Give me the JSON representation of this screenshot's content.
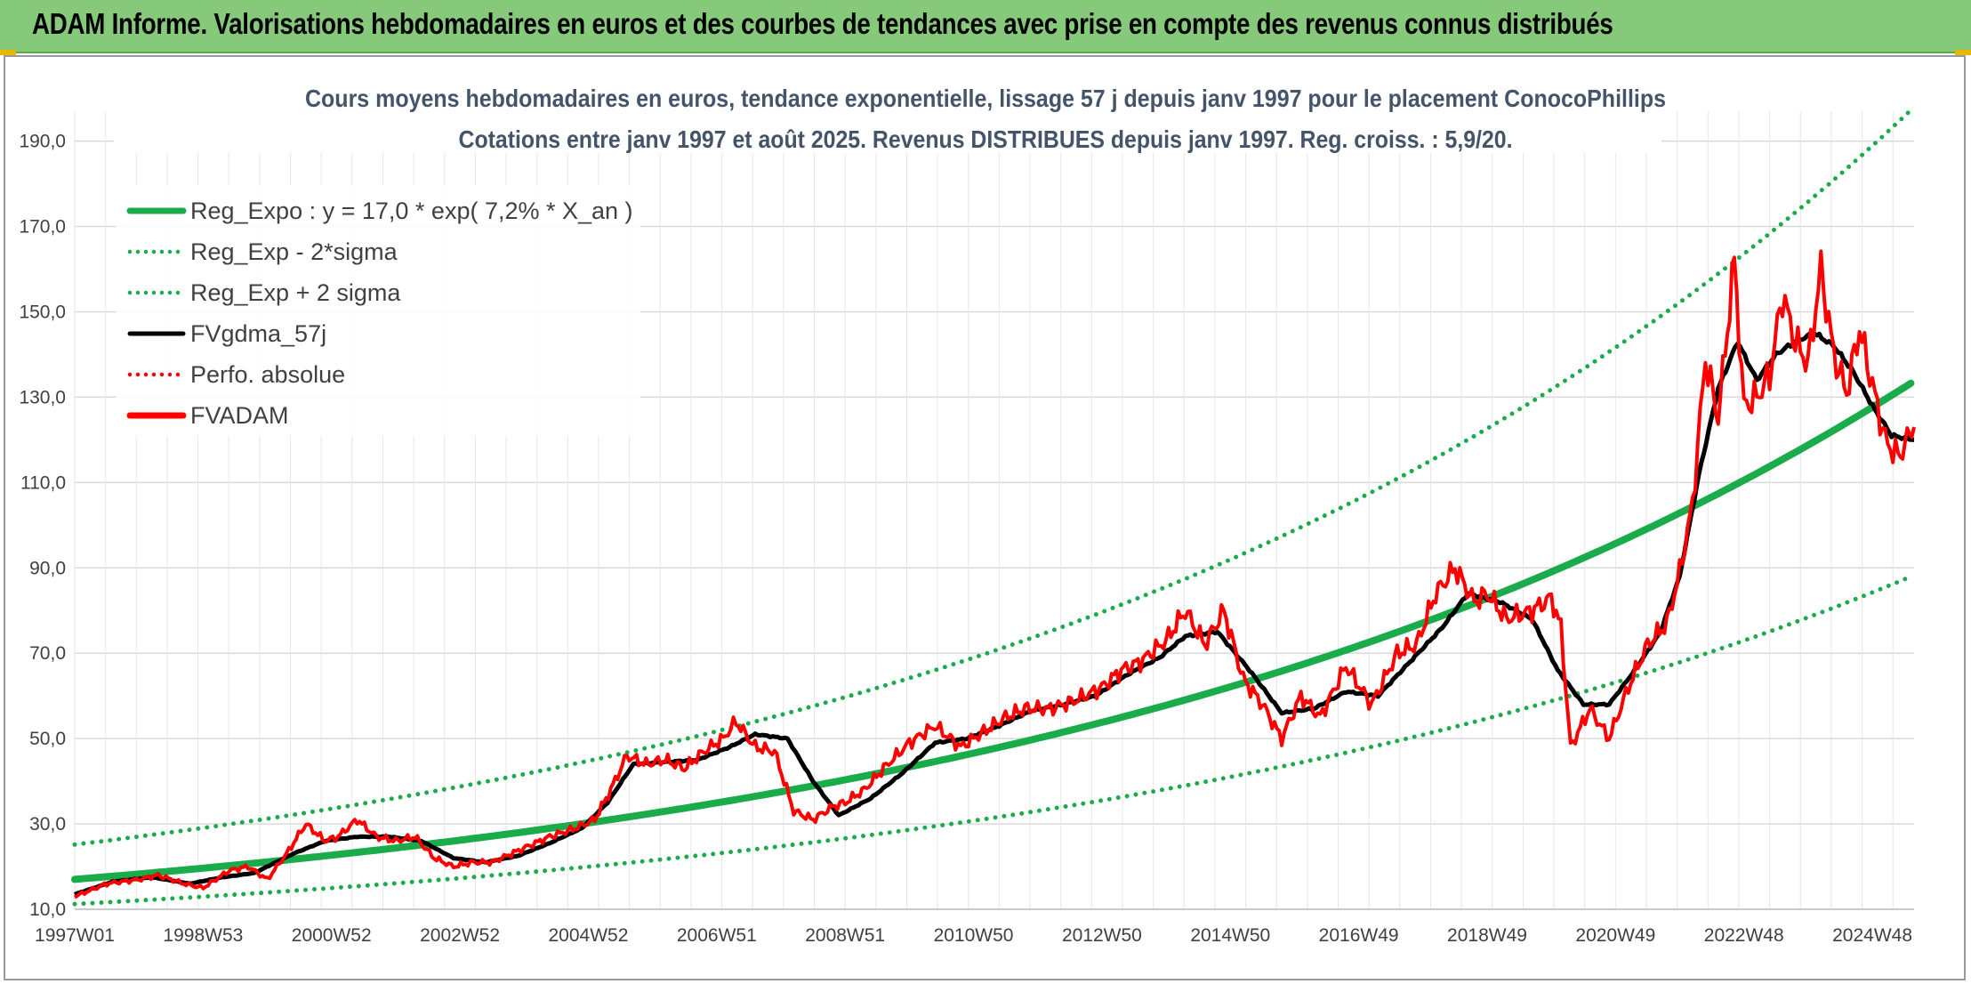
{
  "header": {
    "title": "ADAM Informe. Valorisations hebdomadaires en euros et des courbes de tendances avec prise en compte des revenus connus distribués"
  },
  "colors": {
    "banner": "#86c97a",
    "trend": "#1aab4a",
    "black": "#000000",
    "red": "#ff0000",
    "title": "#44546a"
  },
  "chart_data": {
    "type": "line",
    "title": "Cours moyens hebdomadaires en euros, tendance exponentielle, lissage 57 j depuis janv 1997 pour le placement ConocoPhillips",
    "subtitle": "Cotations entre janv 1997 et août 2025. Revenus DISTRIBUES depuis janv 1997. Reg. croiss. : 5,9/20.",
    "xlabel": "",
    "ylabel": "",
    "x_range": [
      1997.0,
      2025.65
    ],
    "ylim": [
      10,
      197
    ],
    "y_ticks": [
      "10,0",
      "30,0",
      "50,0",
      "70,0",
      "90,0",
      "110,0",
      "130,0",
      "150,0",
      "170,0",
      "190,0"
    ],
    "x_ticks": [
      {
        "label": "1997W01",
        "year": 1997.0
      },
      {
        "label": "1998W53",
        "year": 1999.0
      },
      {
        "label": "2000W52",
        "year": 2001.0
      },
      {
        "label": "2002W52",
        "year": 2003.0
      },
      {
        "label": "2004W52",
        "year": 2005.0
      },
      {
        "label": "2006W51",
        "year": 2007.0
      },
      {
        "label": "2008W51",
        "year": 2009.0
      },
      {
        "label": "2010W50",
        "year": 2011.0
      },
      {
        "label": "2012W50",
        "year": 2013.0
      },
      {
        "label": "2014W50",
        "year": 2015.0
      },
      {
        "label": "2016W49",
        "year": 2017.0
      },
      {
        "label": "2018W49",
        "year": 2019.0
      },
      {
        "label": "2020W49",
        "year": 2021.0
      },
      {
        "label": "2022W48",
        "year": 2023.0
      },
      {
        "label": "2024W48",
        "year": 2025.0
      }
    ],
    "grid": true,
    "legend_position": "top-left",
    "legend": [
      {
        "label": "Reg_Expo : y = 17,0 * exp( 7,2% *  X_an )",
        "color": "#1aab4a",
        "style": "solid-thick"
      },
      {
        "label": "Reg_Exp - 2*sigma",
        "color": "#1aab4a",
        "style": "dotted"
      },
      {
        "label": "Reg_Exp + 2 sigma",
        "color": "#1aab4a",
        "style": "dotted"
      },
      {
        "label": "FVgdma_57j",
        "color": "#000000",
        "style": "solid"
      },
      {
        "label": "Perfo. absolue",
        "color": "#ff0000",
        "style": "dotted"
      },
      {
        "label": "FVADAM",
        "color": "#ff0000",
        "style": "solid-thick"
      }
    ],
    "regression": {
      "a": 17.0,
      "rate": 0.072,
      "lower_factor": 0.66,
      "upper_factor": 1.48
    },
    "series": [
      {
        "name": "FVADAM",
        "x": [
          1997.0,
          1997.5,
          1998.0,
          1998.3,
          1998.7,
          1999.0,
          1999.4,
          1999.7,
          2000.0,
          2000.3,
          2000.6,
          2000.9,
          2001.1,
          2001.4,
          2001.7,
          2002.0,
          2002.3,
          2002.6,
          2002.9,
          2003.2,
          2003.5,
          2003.8,
          2004.1,
          2004.4,
          2004.8,
          2005.1,
          2005.35,
          2005.6,
          2005.9,
          2006.2,
          2006.5,
          2006.8,
          2007.1,
          2007.3,
          2007.6,
          2007.9,
          2008.2,
          2008.5,
          2008.8,
          2009.0,
          2009.3,
          2009.6,
          2010.0,
          2010.4,
          2010.8,
          2011.2,
          2011.5,
          2011.8,
          2012.2,
          2012.6,
          2013.0,
          2013.3,
          2013.6,
          2014.0,
          2014.3,
          2014.6,
          2014.9,
          2015.2,
          2015.5,
          2015.8,
          2016.1,
          2016.4,
          2016.8,
          2017.2,
          2017.6,
          2017.9,
          2018.2,
          2018.5,
          2018.8,
          2019.0,
          2019.3,
          2019.7,
          2020.0,
          2020.15,
          2020.3,
          2020.6,
          2020.9,
          2021.2,
          2021.5,
          2021.8,
          2022.0,
          2022.2,
          2022.4,
          2022.6,
          2022.85,
          2023.0,
          2023.2,
          2023.4,
          2023.6,
          2023.8,
          2024.0,
          2024.2,
          2024.4,
          2024.6,
          2024.8,
          2025.0,
          2025.2,
          2025.4,
          2025.65
        ],
        "values": [
          13,
          16,
          17,
          18,
          16,
          15,
          19,
          20,
          17,
          23,
          30,
          26,
          27,
          31,
          27,
          26,
          27,
          22,
          20,
          21,
          21,
          23,
          25,
          27,
          29,
          31,
          38,
          46,
          44,
          45,
          43,
          47,
          50,
          54,
          48,
          47,
          33,
          31,
          34,
          35,
          38,
          43,
          49,
          53,
          48,
          52,
          55,
          57,
          57,
          59,
          62,
          66,
          68,
          73,
          80,
          72,
          80,
          64,
          58,
          50,
          60,
          55,
          67,
          58,
          70,
          72,
          84,
          90,
          82,
          84,
          78,
          80,
          83,
          76,
          48,
          57,
          50,
          62,
          72,
          77,
          89,
          105,
          139,
          125,
          162,
          128,
          130,
          135,
          154,
          143,
          138,
          160,
          140,
          131,
          146,
          133,
          120,
          116,
          123
        ]
      },
      {
        "name": "FVgdma_57j",
        "x": [
          1997.0,
          1997.6,
          1998.2,
          1998.8,
          1999.3,
          1999.8,
          2000.4,
          2000.9,
          2001.4,
          2001.9,
          2002.4,
          2002.9,
          2003.4,
          2003.9,
          2004.4,
          2004.9,
          2005.3,
          2005.7,
          2006.2,
          2006.7,
          2007.2,
          2007.6,
          2008.1,
          2008.5,
          2008.9,
          2009.4,
          2009.9,
          2010.4,
          2010.9,
          2011.4,
          2011.9,
          2012.4,
          2012.9,
          2013.4,
          2013.9,
          2014.3,
          2014.8,
          2015.3,
          2015.8,
          2016.3,
          2016.8,
          2017.3,
          2017.8,
          2018.3,
          2018.7,
          2019.2,
          2019.7,
          2020.1,
          2020.5,
          2020.9,
          2021.3,
          2021.7,
          2022.0,
          2022.3,
          2022.6,
          2022.9,
          2023.2,
          2023.5,
          2023.8,
          2024.1,
          2024.4,
          2024.7,
          2025.0,
          2025.3,
          2025.65
        ],
        "values": [
          13.5,
          16.5,
          17.5,
          16,
          17.5,
          18.5,
          23,
          26,
          27,
          27,
          26,
          22,
          21,
          22.5,
          25.5,
          29,
          35,
          44,
          44.5,
          45,
          48,
          51,
          50,
          40,
          32,
          36,
          42,
          49,
          50,
          53,
          56.5,
          58,
          60,
          65,
          69,
          74,
          75,
          66,
          56,
          57,
          61,
          60,
          68,
          76,
          84,
          82,
          78,
          66,
          58,
          58,
          66,
          75,
          88,
          112,
          132,
          143,
          134,
          140,
          143,
          145,
          142,
          136,
          128,
          121,
          120
        ]
      }
    ]
  }
}
